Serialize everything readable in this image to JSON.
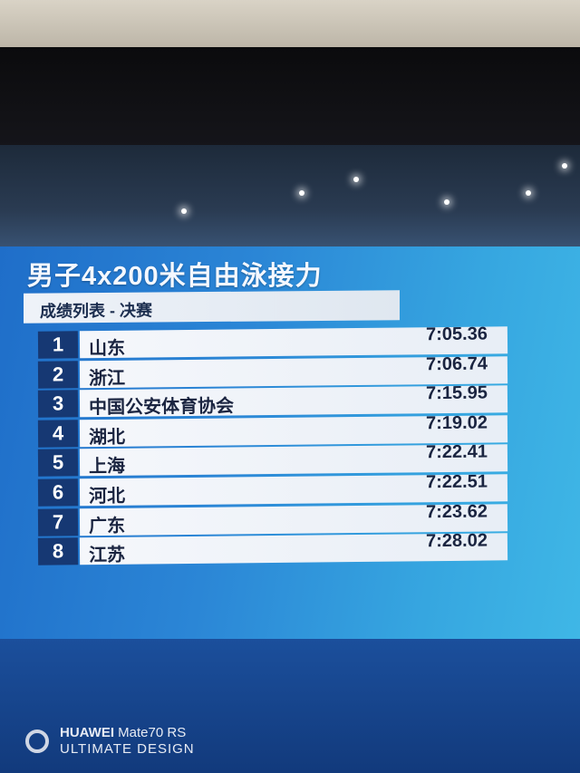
{
  "event_title": "男子4x200米自由泳接力",
  "subtitle": "成绩列表 - 决赛",
  "results": [
    {
      "rank": "1",
      "team": "山东",
      "time": "7:05.36"
    },
    {
      "rank": "2",
      "team": "浙江",
      "time": "7:06.74"
    },
    {
      "rank": "3",
      "team": "中国公安体育协会",
      "time": "7:15.95"
    },
    {
      "rank": "4",
      "team": "湖北",
      "time": "7:19.02"
    },
    {
      "rank": "5",
      "team": "上海",
      "time": "7:22.41"
    },
    {
      "rank": "6",
      "team": "河北",
      "time": "7:22.51"
    },
    {
      "rank": "7",
      "team": "广东",
      "time": "7:23.62"
    },
    {
      "rank": "8",
      "team": "江苏",
      "time": "7:28.02"
    }
  ],
  "watermark": {
    "brand": "HUAWEI",
    "model": "Mate70 RS",
    "tagline": "ULTIMATE DESIGN"
  },
  "colors": {
    "panel": "#2b86d6",
    "rank_box": "#163873",
    "row_bg": "#f5f7fb",
    "text": "#1a2440"
  }
}
